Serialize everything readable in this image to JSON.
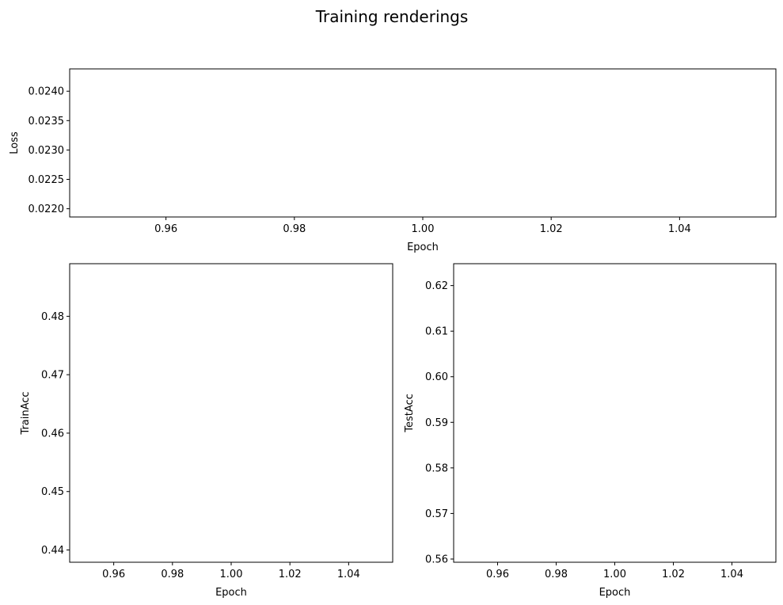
{
  "figure": {
    "suptitle": "Training renderings"
  },
  "chart_data": [
    {
      "type": "line",
      "title": "",
      "xlabel": "Epoch",
      "ylabel": "Loss",
      "xlim": [
        0.945,
        1.055
      ],
      "ylim": [
        0.02186,
        0.02438
      ],
      "xticks": [
        "0.96",
        "0.98",
        "1.00",
        "1.02",
        "1.04"
      ],
      "yticks": [
        "0.0220",
        "0.0225",
        "0.0230",
        "0.0235",
        "0.0240"
      ],
      "grid": false,
      "series": []
    },
    {
      "type": "line",
      "title": "",
      "xlabel": "Epoch",
      "ylabel": "TrainAcc",
      "xlim": [
        0.945,
        1.055
      ],
      "ylim": [
        0.4379,
        0.489
      ],
      "xticks": [
        "0.96",
        "0.98",
        "1.00",
        "1.02",
        "1.04"
      ],
      "yticks": [
        "0.44",
        "0.45",
        "0.46",
        "0.47",
        "0.48"
      ],
      "grid": false,
      "series": []
    },
    {
      "type": "line",
      "title": "",
      "xlabel": "Epoch",
      "ylabel": "TestAcc",
      "xlim": [
        0.945,
        1.055
      ],
      "ylim": [
        0.5593,
        0.6248
      ],
      "xticks": [
        "0.96",
        "0.98",
        "1.00",
        "1.02",
        "1.04"
      ],
      "yticks": [
        "0.56",
        "0.57",
        "0.58",
        "0.59",
        "0.60",
        "0.61",
        "0.62"
      ],
      "grid": false,
      "series": []
    }
  ]
}
